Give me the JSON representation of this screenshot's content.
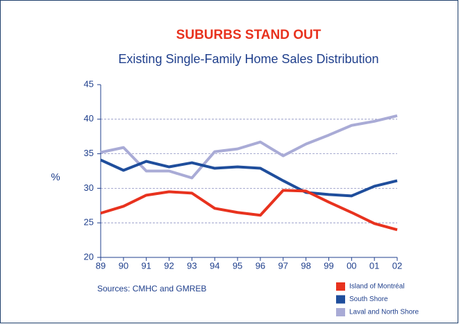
{
  "chart_data": {
    "type": "line",
    "title": "SUBURBS STAND OUT",
    "subtitle": "Existing Single-Family Home Sales Distribution",
    "y_label": "%",
    "source": "Sources: CMHC and GMREB",
    "categories": [
      "89",
      "90",
      "91",
      "92",
      "93",
      "94",
      "95",
      "96",
      "97",
      "98",
      "99",
      "00",
      "01",
      "02"
    ],
    "series": [
      {
        "name": "Island of Montréal",
        "color": "#e8321e",
        "values": [
          26.4,
          27.4,
          29.0,
          29.5,
          29.3,
          27.1,
          26.5,
          26.1,
          29.7,
          29.6,
          28.0,
          26.5,
          24.9,
          24.0
        ]
      },
      {
        "name": "South Shore",
        "color": "#1f4e9c",
        "values": [
          34.1,
          32.6,
          33.9,
          33.1,
          33.7,
          32.9,
          33.1,
          32.9,
          31.1,
          29.4,
          29.1,
          28.9,
          30.3,
          31.1
        ]
      },
      {
        "name": "Laval and North Shore",
        "color": "#a9abd6",
        "values": [
          35.2,
          35.9,
          32.5,
          32.5,
          31.5,
          35.3,
          35.7,
          36.7,
          34.7,
          36.4,
          37.7,
          39.1,
          39.7,
          40.5
        ]
      }
    ],
    "ylim": [
      20,
      45
    ],
    "yticks": [
      20,
      25,
      30,
      35,
      40,
      45
    ],
    "grid": true,
    "legend": "lower right"
  }
}
